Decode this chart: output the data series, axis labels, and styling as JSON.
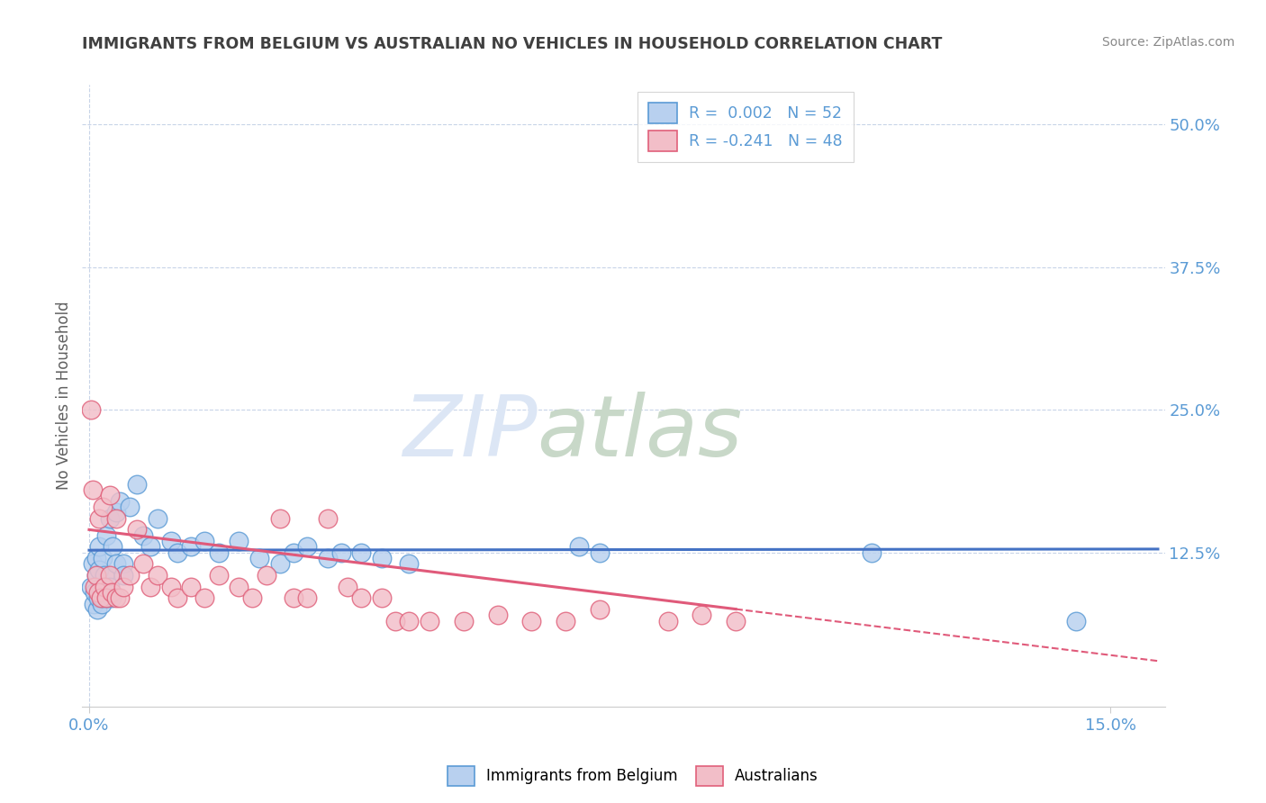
{
  "title": "IMMIGRANTS FROM BELGIUM VS AUSTRALIAN NO VEHICLES IN HOUSEHOLD CORRELATION CHART",
  "source": "Source: ZipAtlas.com",
  "xlim": [
    -0.001,
    0.158
  ],
  "ylim": [
    -0.01,
    0.535
  ],
  "ylabel": "No Vehicles in Household",
  "legend_entries": [
    {
      "label": "R =  0.002   N = 52"
    },
    {
      "label": "R = -0.241   N = 48"
    }
  ],
  "blue_scatter_x": [
    0.0003,
    0.0005,
    0.0007,
    0.0008,
    0.001,
    0.001,
    0.0012,
    0.0013,
    0.0015,
    0.0015,
    0.0017,
    0.0018,
    0.002,
    0.002,
    0.0022,
    0.0023,
    0.0025,
    0.0025,
    0.0027,
    0.003,
    0.003,
    0.0033,
    0.0035,
    0.004,
    0.004,
    0.0045,
    0.005,
    0.005,
    0.006,
    0.007,
    0.008,
    0.009,
    0.01,
    0.012,
    0.013,
    0.015,
    0.017,
    0.019,
    0.022,
    0.025,
    0.028,
    0.03,
    0.032,
    0.035,
    0.037,
    0.04,
    0.043,
    0.047,
    0.072,
    0.075,
    0.115,
    0.145
  ],
  "blue_scatter_y": [
    0.095,
    0.115,
    0.08,
    0.09,
    0.12,
    0.105,
    0.075,
    0.085,
    0.13,
    0.11,
    0.095,
    0.08,
    0.12,
    0.085,
    0.105,
    0.095,
    0.14,
    0.09,
    0.085,
    0.155,
    0.095,
    0.085,
    0.13,
    0.16,
    0.115,
    0.17,
    0.115,
    0.105,
    0.165,
    0.185,
    0.14,
    0.13,
    0.155,
    0.135,
    0.125,
    0.13,
    0.135,
    0.125,
    0.135,
    0.12,
    0.115,
    0.125,
    0.13,
    0.12,
    0.125,
    0.125,
    0.12,
    0.115,
    0.13,
    0.125,
    0.125,
    0.065
  ],
  "pink_scatter_x": [
    0.0003,
    0.0005,
    0.0008,
    0.001,
    0.0013,
    0.0015,
    0.0017,
    0.002,
    0.0022,
    0.0025,
    0.003,
    0.003,
    0.0033,
    0.004,
    0.004,
    0.0045,
    0.005,
    0.006,
    0.007,
    0.008,
    0.009,
    0.01,
    0.012,
    0.013,
    0.015,
    0.017,
    0.019,
    0.022,
    0.024,
    0.026,
    0.028,
    0.03,
    0.032,
    0.035,
    0.038,
    0.04,
    0.043,
    0.045,
    0.047,
    0.05,
    0.055,
    0.06,
    0.065,
    0.07,
    0.075,
    0.085,
    0.09,
    0.095
  ],
  "pink_scatter_y": [
    0.25,
    0.18,
    0.095,
    0.105,
    0.09,
    0.155,
    0.085,
    0.165,
    0.095,
    0.085,
    0.175,
    0.105,
    0.09,
    0.155,
    0.085,
    0.085,
    0.095,
    0.105,
    0.145,
    0.115,
    0.095,
    0.105,
    0.095,
    0.085,
    0.095,
    0.085,
    0.105,
    0.095,
    0.085,
    0.105,
    0.155,
    0.085,
    0.085,
    0.155,
    0.095,
    0.085,
    0.085,
    0.065,
    0.065,
    0.065,
    0.065,
    0.07,
    0.065,
    0.065,
    0.075,
    0.065,
    0.07,
    0.065
  ],
  "blue_line_y_at_0": 0.127,
  "blue_line_y_at_end": 0.128,
  "pink_line_y_at_0": 0.145,
  "pink_line_y_at_max": 0.03,
  "pink_line_solid_end": 0.095,
  "blue_color": "#4472c4",
  "pink_color": "#e05a7a",
  "blue_fill": "#b8d0ef",
  "pink_fill": "#f2bec8",
  "blue_edge": "#5b9bd5",
  "pink_edge": "#e0607a",
  "watermark_zip": "ZIP",
  "watermark_atlas": "atlas",
  "watermark_color": "#dce6f5",
  "watermark_color2": "#c8d8c8",
  "background_color": "#ffffff",
  "grid_color": "#c8d4e8",
  "title_color": "#404040",
  "axis_label_color": "#5b9bd5",
  "source_color": "#888888"
}
